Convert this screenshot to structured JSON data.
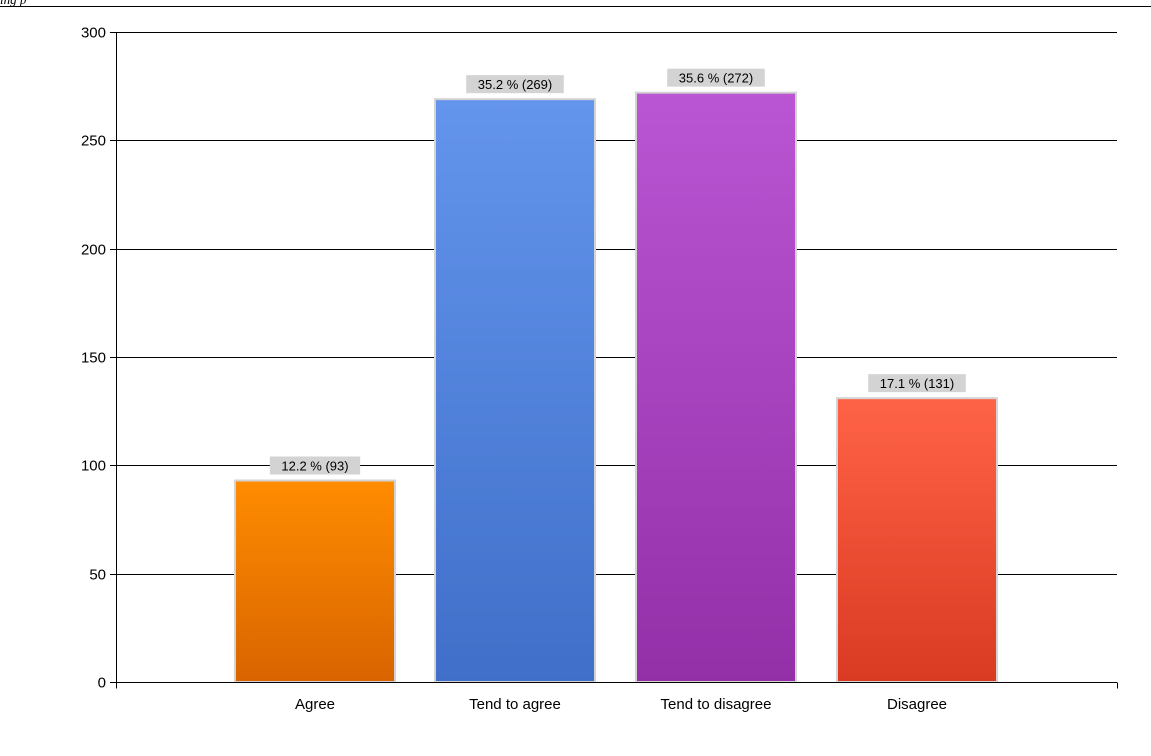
{
  "header": {
    "text": "ing p"
  },
  "chart_data": {
    "type": "bar",
    "categories": [
      "Agree",
      "Tend to agree",
      "Tend to disagree",
      "Disagree"
    ],
    "values": [
      93,
      269,
      272,
      131
    ],
    "data_labels": [
      "12.2 % (93)",
      "35.2 % (269)",
      "35.6 % (272)",
      "17.1 % (131)"
    ],
    "title": "",
    "xlabel": "",
    "ylabel": "",
    "ylim": [
      0,
      300
    ],
    "yticks": [
      0,
      50,
      100,
      150,
      200,
      250,
      300
    ],
    "grid": true,
    "legend": "none",
    "colors": [
      {
        "top": "#ff8c00",
        "bottom": "#d96400"
      },
      {
        "top": "#6495ed",
        "bottom": "#3f6fc8"
      },
      {
        "top": "#ba55d3",
        "bottom": "#9330a8"
      },
      {
        "top": "#ff6347",
        "bottom": "#d93a22"
      }
    ],
    "bar_border": "#d3d3d3",
    "label_background": "#d3d3d3"
  }
}
